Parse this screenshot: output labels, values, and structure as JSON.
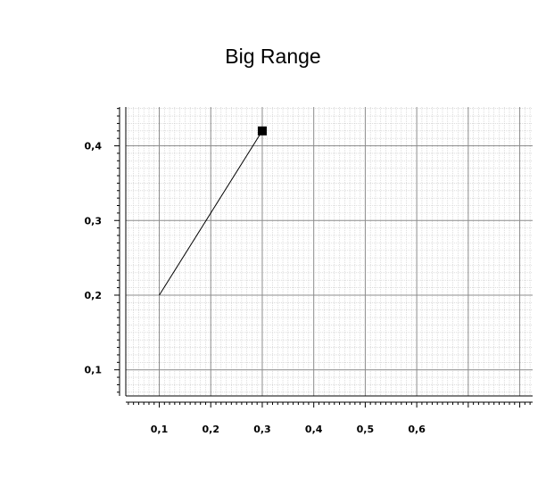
{
  "chart_data": {
    "type": "line",
    "title": "Big Range",
    "xlabel": "",
    "ylabel": "",
    "xlim": [
      0.035,
      0.825
    ],
    "ylim": [
      0.065,
      0.452
    ],
    "x_ticks": [
      0.1,
      0.2,
      0.3,
      0.4,
      0.5,
      0.6
    ],
    "x_tick_labels": [
      "0,1",
      "0,2",
      "0,3",
      "0,4",
      "0,5",
      "0,6"
    ],
    "x_grid_major": [
      0.1,
      0.2,
      0.3,
      0.4,
      0.5,
      0.6,
      0.7,
      0.8
    ],
    "y_ticks": [
      0.1,
      0.2,
      0.3,
      0.4
    ],
    "y_tick_labels": [
      "0,1",
      "0,2",
      "0,3",
      "0,4"
    ],
    "grid": true,
    "minor_grid": true,
    "series": [
      {
        "x": [
          0.1,
          0.3
        ],
        "y": [
          0.2,
          0.42
        ],
        "color": "#000000",
        "end_marker": "square"
      }
    ]
  }
}
